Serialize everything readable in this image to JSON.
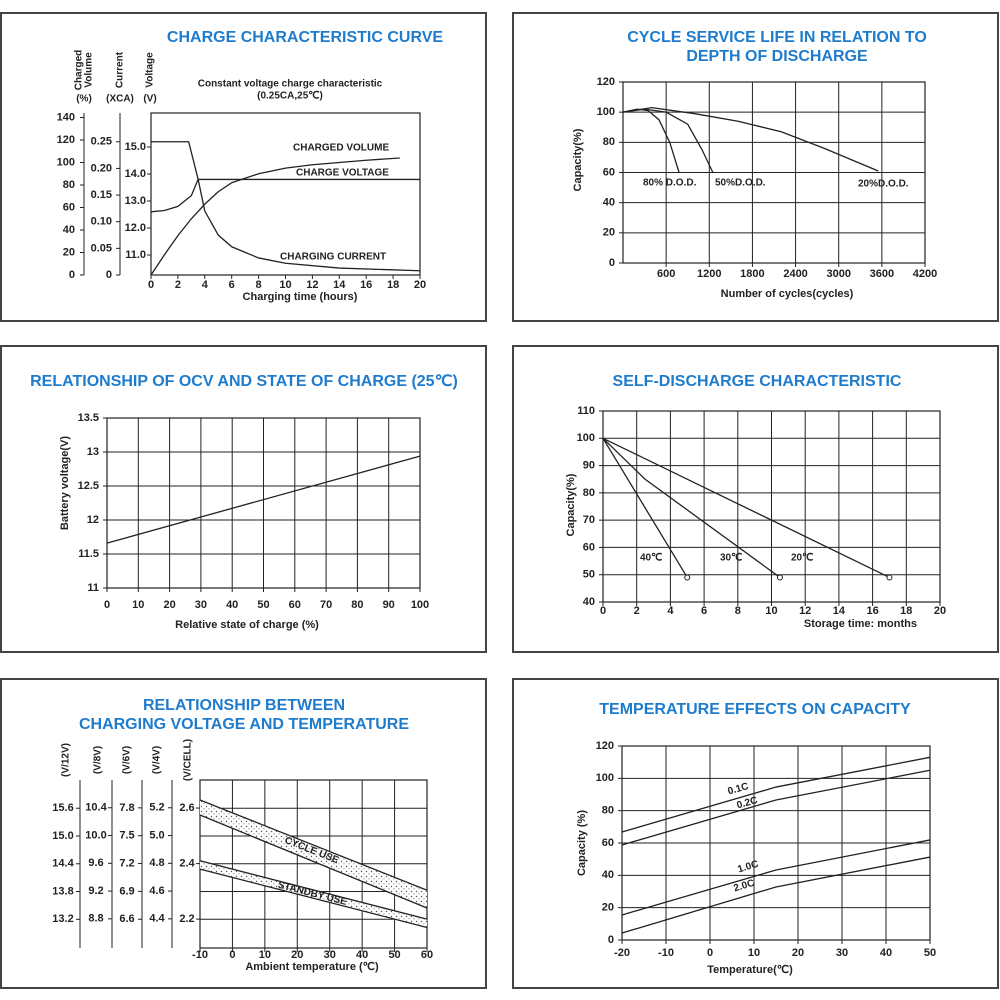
{
  "chart_data": [
    {
      "type": "line",
      "title": "CHARGE CHARACTERISTIC CURVE",
      "annotation": [
        "Constant voltage charge characteristic",
        "(0.25CA,25℃)"
      ],
      "xlabel": "Charging time (hours)",
      "xlim": [
        0,
        20
      ],
      "xticks": [
        0,
        2,
        4,
        6,
        8,
        10,
        12,
        14,
        16,
        18,
        20
      ],
      "y_axes": [
        {
          "title": [
            "Charged",
            "Volume"
          ],
          "unit": "(%)",
          "lim": [
            0,
            144
          ],
          "ticks": [
            0,
            20,
            40,
            60,
            80,
            100,
            120,
            140
          ]
        },
        {
          "title": [
            "Current"
          ],
          "unit": "(XCA)",
          "lim": [
            0,
            0.304
          ],
          "ticks": [
            0,
            0.05,
            {
              "value": 0.1,
              "label": "0.10"
            },
            0.15,
            {
              "value": 0.2,
              "label": "0.20"
            },
            0.25
          ]
        },
        {
          "title": [
            "Voltage"
          ],
          "unit": "(V)",
          "lim": [
            10.26,
            16.26
          ],
          "ticks": [
            {
              "value": 11,
              "label": "11.0"
            },
            {
              "value": 12,
              "label": "12.0"
            },
            {
              "value": 13,
              "label": "13.0"
            },
            {
              "value": 14,
              "label": "14.0"
            },
            {
              "value": 15,
              "label": "15.0"
            }
          ]
        }
      ],
      "series": [
        {
          "name": "CHARGED VOLUME",
          "color": "#222222",
          "axis": 0,
          "x": [
            0,
            1,
            2,
            3,
            4,
            5,
            6,
            8,
            10,
            12,
            14,
            16,
            18.5
          ],
          "values": [
            0,
            18,
            35,
            50,
            63,
            74,
            82,
            90,
            95,
            98,
            100,
            102,
            104
          ]
        },
        {
          "name": "CHARGE VOLTAGE",
          "color": "#222222",
          "axis": 2,
          "x": [
            0,
            1,
            2,
            3,
            3.5,
            20
          ],
          "values": [
            12.6,
            12.65,
            12.8,
            13.2,
            13.8,
            13.8
          ]
        },
        {
          "name": "CHARGING CURRENT",
          "color": "#222222",
          "axis": 1,
          "x": [
            0,
            2.8,
            3.5,
            4,
            5,
            6,
            8,
            10,
            14,
            20
          ],
          "values": [
            0.25,
            0.25,
            0.18,
            0.12,
            0.075,
            0.053,
            0.032,
            0.022,
            0.013,
            0.008
          ]
        }
      ],
      "grid": false
    },
    {
      "type": "line",
      "title": [
        "CYCLE SERVICE LIFE IN RELATION TO",
        "DEPTH OF DISCHARGE"
      ],
      "xlabel": "Number of cycles(cycles)",
      "ylabel": "Capacity(%)",
      "xlim": [
        0,
        4200
      ],
      "xticks": [
        600,
        1200,
        1800,
        2400,
        3000,
        3600,
        4200
      ],
      "ylim": [
        0,
        120
      ],
      "yticks": [
        0,
        20,
        40,
        60,
        80,
        100,
        120
      ],
      "series": [
        {
          "name": "80% D.O.D.",
          "color": "#222222",
          "x": [
            0,
            200,
            350,
            500,
            650,
            780
          ],
          "values": [
            100,
            102,
            101,
            95,
            80,
            60
          ]
        },
        {
          "name": "50%D.O.D.",
          "color": "#222222",
          "x": [
            0,
            300,
            600,
            900,
            1100,
            1250
          ],
          "values": [
            100,
            102,
            100,
            92,
            75,
            60
          ]
        },
        {
          "name": "20%D.O.D.",
          "color": "#222222",
          "x": [
            0,
            400,
            1000,
            1600,
            2200,
            2800,
            3550
          ],
          "values": [
            100,
            103,
            99,
            94,
            87,
            76,
            61
          ]
        }
      ],
      "grid": true
    },
    {
      "type": "line",
      "title": "RELATIONSHIP OF OCV AND STATE OF CHARGE (25℃)",
      "xlabel": "Relative state of charge (%)",
      "ylabel": "Battery voltage(V)",
      "xlim": [
        0,
        100
      ],
      "xticks": [
        0,
        10,
        20,
        30,
        40,
        50,
        60,
        70,
        80,
        90,
        100
      ],
      "ylim": [
        11,
        13.5
      ],
      "yticks": [
        11,
        11.5,
        12,
        12.5,
        13,
        13.5
      ],
      "series": [
        {
          "color": "#222222",
          "x": [
            0,
            100
          ],
          "values": [
            11.66,
            12.94
          ]
        }
      ],
      "grid": true
    },
    {
      "type": "line",
      "title": "SELF-DISCHARGE CHARACTERISTIC",
      "xlabel": "Storage time: months",
      "ylabel": "Capacity(%)",
      "xlim": [
        0,
        20
      ],
      "xticks": [
        0,
        2,
        4,
        6,
        8,
        10,
        12,
        14,
        16,
        18,
        20
      ],
      "ylim": [
        40,
        110
      ],
      "yticks": [
        40,
        50,
        60,
        70,
        80,
        90,
        100,
        110
      ],
      "series": [
        {
          "name": "40℃",
          "color": "#222222",
          "x": [
            0,
            5
          ],
          "values": [
            100,
            49
          ]
        },
        {
          "name": "30℃",
          "color": "#222222",
          "x": [
            0,
            2.5,
            10.5
          ],
          "values": [
            100,
            85,
            49
          ]
        },
        {
          "name": "20℃",
          "color": "#222222",
          "x": [
            0,
            17
          ],
          "values": [
            100,
            49
          ]
        }
      ],
      "grid": true
    },
    {
      "type": "band",
      "title": [
        "RELATIONSHIP BETWEEN",
        "CHARGING VOLTAGE AND TEMPERATURE"
      ],
      "xlabel": "Ambient temperature (℃)",
      "xlim": [
        -10,
        60
      ],
      "xticks": [
        -10,
        0,
        10,
        20,
        30,
        40,
        50,
        60
      ],
      "x": [
        -10,
        60
      ],
      "y_axes": [
        {
          "title": [
            "(V/12V)"
          ],
          "lim": [
            12.58,
            16.21
          ],
          "ticks": [
            {
              "value": 13.2,
              "label": "13.2"
            },
            13.8,
            14.4,
            {
              "value": 15,
              "label": "15.0"
            },
            15.6
          ]
        },
        {
          "title": [
            "(V/8V)"
          ],
          "lim": [
            8.38,
            10.8
          ],
          "ticks": [
            8.8,
            9.2,
            9.6,
            {
              "value": 10,
              "label": "10.0"
            },
            10.4
          ]
        },
        {
          "title": [
            "(V/6V)"
          ],
          "lim": [
            6.29,
            8.1
          ],
          "ticks": [
            6.6,
            6.9,
            7.2,
            7.5,
            7.8
          ]
        },
        {
          "title": [
            "(V/4V)"
          ],
          "lim": [
            4.19,
            5.4
          ],
          "ticks": [
            4.4,
            4.6,
            4.8,
            {
              "value": 5,
              "label": "5.0"
            },
            5.2
          ]
        },
        {
          "title": [
            "(V/CELL)"
          ],
          "lim": [
            2.096,
            2.701
          ],
          "ticks": [
            2.2,
            2.4,
            2.6
          ]
        }
      ],
      "series": [
        {
          "name": "CYCLE USE",
          "color": "#222222",
          "axis": 4,
          "upper": [
            2.629,
            2.304
          ],
          "lower": [
            2.575,
            2.24
          ]
        },
        {
          "name": "STANDBY USE",
          "color": "#222222",
          "axis": 4,
          "upper": [
            2.41,
            2.2
          ],
          "lower": [
            2.38,
            2.17
          ]
        }
      ],
      "grid": true
    },
    {
      "type": "line",
      "title": "TEMPERATURE EFFECTS ON CAPACITY",
      "xlabel": "Temperature(℃)",
      "ylabel": "Capacity (%)",
      "xlim": [
        -20,
        50
      ],
      "xticks": [
        -20,
        -10,
        0,
        10,
        20,
        30,
        40,
        50
      ],
      "ylim": [
        0,
        120
      ],
      "yticks": [
        0,
        20,
        40,
        60,
        80,
        100,
        120
      ],
      "x": [
        -20,
        15,
        50
      ],
      "series": [
        {
          "name": "0.1C",
          "color": "#222222",
          "values": [
            66.8,
            94.6,
            113
          ]
        },
        {
          "name": "0.2C",
          "color": "#222222",
          "values": [
            58.8,
            86.6,
            105
          ]
        },
        {
          "name": "1.0C",
          "color": "#222222",
          "values": [
            15.5,
            43.3,
            61.9
          ]
        },
        {
          "name": "2.0C",
          "color": "#222222",
          "values": [
            4.3,
            32.8,
            51.3
          ]
        }
      ],
      "grid": true
    }
  ]
}
